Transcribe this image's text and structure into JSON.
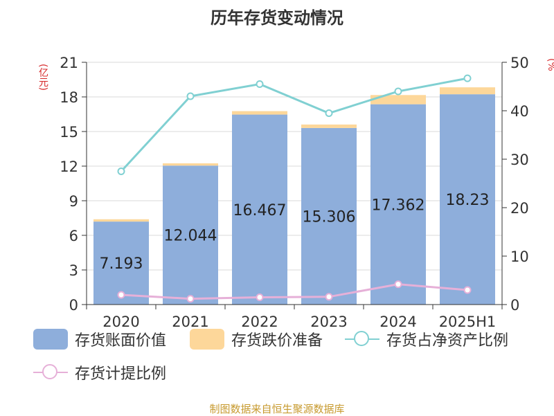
{
  "title": "历年存货变动情况",
  "unit_left": "(亿元)",
  "unit_right": "(%)",
  "source": "制图数据来自恒生聚源数据库",
  "chart_data": {
    "type": "bar",
    "stacked": true,
    "categories": [
      "2020",
      "2021",
      "2022",
      "2023",
      "2024",
      "2025H1"
    ],
    "series": [
      {
        "name": "存货账面价值",
        "type": "bar",
        "axis": "left",
        "color": "#8eaedb",
        "values": [
          7.193,
          12.044,
          16.467,
          15.306,
          17.362,
          18.23
        ],
        "labels": [
          "7.193",
          "12.044",
          "16.467",
          "15.306",
          "17.362",
          "18.23"
        ]
      },
      {
        "name": "存货跌价准备",
        "type": "bar",
        "axis": "left",
        "color": "#fdd79a",
        "values": [
          0.2,
          0.2,
          0.3,
          0.3,
          0.8,
          0.6
        ]
      },
      {
        "name": "存货占净资产比例",
        "type": "line",
        "axis": "right",
        "color": "#80d0d2",
        "values": [
          27.5,
          43.0,
          45.5,
          39.5,
          44.0,
          46.7
        ]
      },
      {
        "name": "存货计提比例",
        "type": "line",
        "axis": "right",
        "color": "#e6b0d8",
        "values": [
          2.0,
          1.2,
          1.5,
          1.6,
          4.2,
          3.0
        ]
      }
    ],
    "y_left": {
      "min": 0,
      "max": 21,
      "ticks": [
        0,
        3,
        6,
        9,
        12,
        15,
        18,
        21
      ]
    },
    "y_right": {
      "min": 0,
      "max": 50,
      "ticks": [
        0,
        10,
        20,
        30,
        40,
        50
      ]
    },
    "grid": true,
    "legend_position": "bottom-left"
  }
}
